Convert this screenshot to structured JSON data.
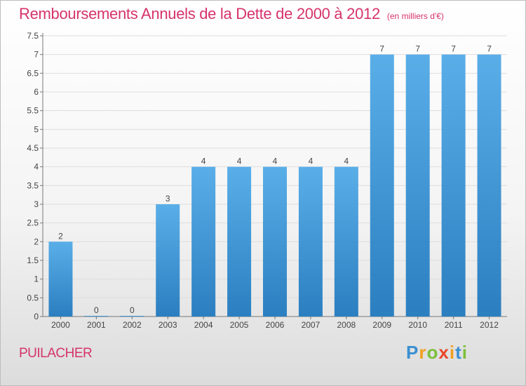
{
  "header": {
    "title": "Remboursements Annuels de la Dette de 2000 à 2012",
    "subtitle": "(en milliers d'€)"
  },
  "footer": {
    "commune": "PUILACHER",
    "logo_text": "Proxiti"
  },
  "colors": {
    "bar_top": "#5aaee8",
    "bar_bottom": "#2b7fc0",
    "title": "#d6336c",
    "grid": "#dddddd"
  },
  "chart_data": {
    "type": "bar",
    "title": "Remboursements Annuels de la Dette de 2000 à 2012",
    "categories": [
      "2000",
      "2001",
      "2002",
      "2003",
      "2004",
      "2005",
      "2006",
      "2007",
      "2008",
      "2009",
      "2010",
      "2011",
      "2012"
    ],
    "values": [
      2,
      0,
      0,
      3,
      4,
      4,
      4,
      4,
      4,
      7,
      7,
      7,
      7
    ],
    "data_labels": [
      "2",
      "0",
      "0",
      "3",
      "4",
      "4",
      "4",
      "4",
      "4",
      "7",
      "7",
      "7",
      "7"
    ],
    "yticks": [
      0,
      0.5,
      1,
      1.5,
      2,
      2.5,
      3,
      3.5,
      4,
      4.5,
      5,
      5.5,
      6,
      6.5,
      7,
      7.5
    ],
    "ytick_labels": [
      "0",
      "0.5",
      "1",
      "1.5",
      "2",
      "2.5",
      "3",
      "3.5",
      "4",
      "4.5",
      "5",
      "5.5",
      "6",
      "6.5",
      "7",
      "7.5"
    ],
    "ylim": [
      0,
      7.5
    ],
    "grid": true,
    "legend": "none"
  }
}
